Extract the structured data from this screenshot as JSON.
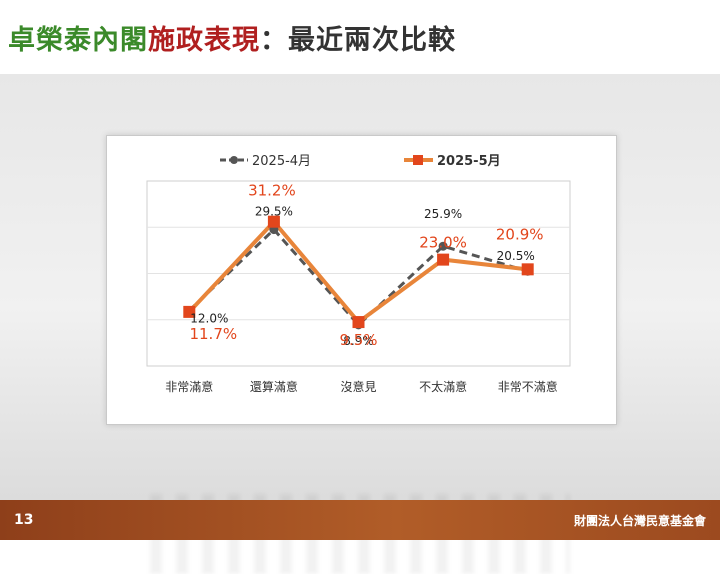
{
  "slide": {
    "title_parts": [
      "卓榮泰內閣",
      "施政表現",
      "：最近兩次比較"
    ],
    "page_number": "13",
    "organization": "財團法人台灣民意基金會"
  },
  "colors": {
    "title_green": "#3b8a2a",
    "title_red": "#b01f1f",
    "series_2025_4": "#555555",
    "series_2025_5": "#e8853a",
    "marker_2025_5": "#e2461c",
    "label_2025_5": "#e2461c",
    "footer": "#a04e22"
  },
  "chart_data": {
    "type": "line",
    "categories": [
      "非常滿意",
      "還算滿意",
      "沒意見",
      "不太滿意",
      "非常不滿意"
    ],
    "series": [
      {
        "name": "2025-4月",
        "values": [
          12.0,
          29.5,
          8.9,
          25.9,
          20.5
        ],
        "labels": [
          "12.0%",
          "29.5%",
          "8.9%",
          "25.9%",
          "20.5%"
        ],
        "style": "dashed",
        "marker": "circle"
      },
      {
        "name": "2025-5月",
        "values": [
          11.7,
          31.2,
          9.5,
          23.0,
          20.9
        ],
        "labels": [
          "11.7%",
          "31.2%",
          "9.5%",
          "23.0%",
          "20.9%"
        ],
        "style": "solid",
        "marker": "square"
      }
    ],
    "ylim": [
      0,
      40
    ],
    "grid": true,
    "legend": "top"
  }
}
